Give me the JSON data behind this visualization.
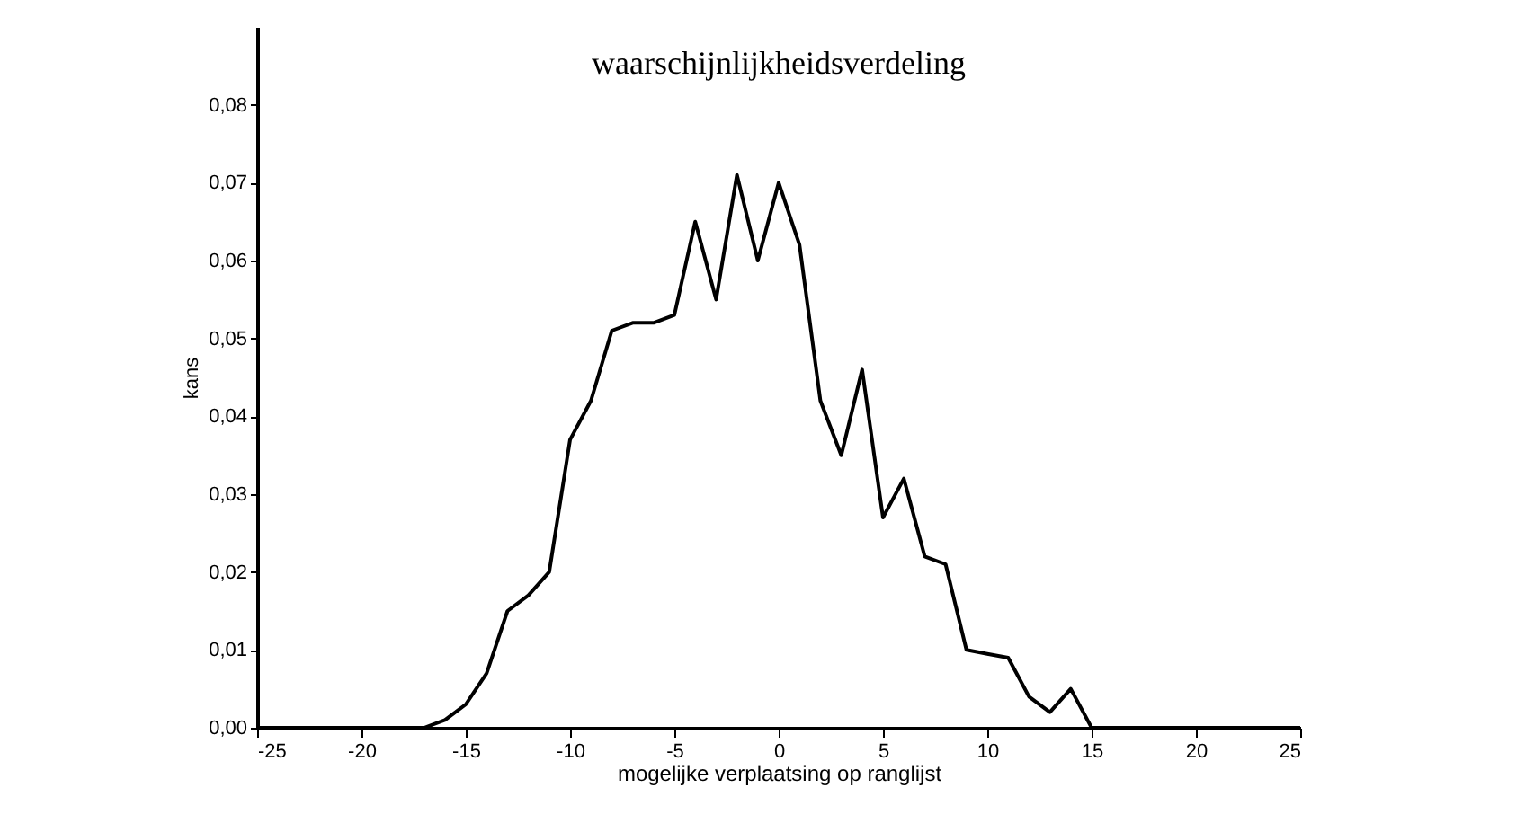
{
  "chart_data": {
    "type": "line",
    "title": "waarschijnlijkheidsverdeling",
    "xlabel": "mogelijke verplaatsing op ranglijst",
    "ylabel": "kans",
    "x": [
      -25,
      -24,
      -23,
      -22,
      -21,
      -20,
      -19,
      -18,
      -17,
      -16,
      -15,
      -14,
      -13,
      -12,
      -11,
      -10,
      -9,
      -8,
      -7,
      -6,
      -5,
      -4,
      -3,
      -2,
      -1,
      0,
      1,
      2,
      3,
      4,
      5,
      6,
      7,
      8,
      9,
      10,
      11,
      12,
      13,
      14,
      15,
      16,
      17,
      18,
      19,
      20,
      21,
      22,
      23,
      24,
      25
    ],
    "series": [
      {
        "color": "#000000",
        "values": [
          0,
          0,
          0,
          0,
          0,
          0,
          0,
          0,
          0,
          0.001,
          0.003,
          0.007,
          0.015,
          0.017,
          0.02,
          0.037,
          0.042,
          0.051,
          0.052,
          0.052,
          0.053,
          0.065,
          0.055,
          0.071,
          0.06,
          0.07,
          0.062,
          0.042,
          0.035,
          0.046,
          0.027,
          0.032,
          0.022,
          0.021,
          0.01,
          0.0095,
          0.009,
          0.004,
          0.002,
          0.005,
          0,
          0,
          0,
          0,
          0,
          0,
          0,
          0,
          0,
          0,
          0
        ]
      }
    ],
    "xlim": [
      -25,
      25
    ],
    "xticks": [
      {
        "value": -25,
        "label": "-25"
      },
      {
        "value": -20,
        "label": "-20"
      },
      {
        "value": -15,
        "label": "-15"
      },
      {
        "value": -10,
        "label": "-10"
      },
      {
        "value": -5,
        "label": "-5"
      },
      0,
      5,
      10,
      15,
      20,
      25
    ],
    "ylim": [
      0,
      0.09
    ],
    "yticks": [
      {
        "value": 0,
        "label": "0,00"
      },
      {
        "value": 0.01,
        "label": "0,01"
      },
      {
        "value": 0.02,
        "label": "0,02"
      },
      {
        "value": 0.03,
        "label": "0,03"
      },
      {
        "value": 0.04,
        "label": "0,04"
      },
      {
        "value": 0.05,
        "label": "0,05"
      },
      {
        "value": 0.06,
        "label": "0,06"
      },
      {
        "value": 0.07,
        "label": "0,07"
      },
      {
        "value": 0.08,
        "label": "0,08"
      }
    ],
    "grid": false,
    "marker": "none",
    "line_style": "solid"
  }
}
